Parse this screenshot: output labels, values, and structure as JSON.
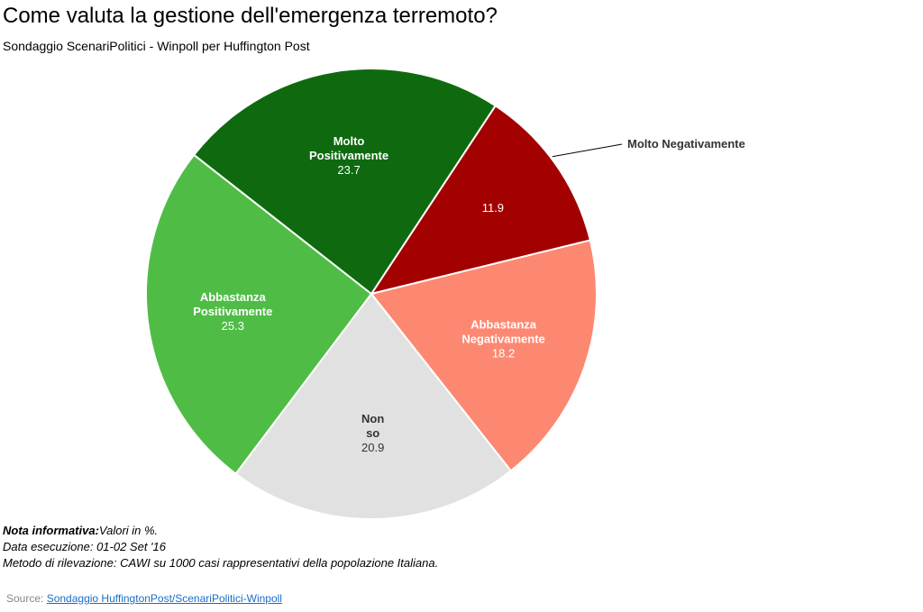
{
  "chart_data": {
    "type": "pie",
    "title": "Come valuta la gestione dell'emergenza terremoto?",
    "subtitle": "Sondaggio ScenariPolitici - Winpoll per Huffington Post",
    "slices": [
      {
        "label": "Molto Negativamente",
        "value": 11.9,
        "color": "#a30000",
        "label_color": "#ffffff",
        "outside": true
      },
      {
        "label": "Abbastanza Negativamente",
        "value": 18.2,
        "color": "#fd8872",
        "label_color": "#ffffff",
        "outside": false
      },
      {
        "label": "Non so",
        "value": 20.9,
        "color": "#e1e1e1",
        "label_color": "#333333",
        "outside": false
      },
      {
        "label": "Abbastanza Positivamente",
        "value": 25.3,
        "color": "#4fbd45",
        "label_color": "#ffffff",
        "outside": false
      },
      {
        "label": "Molto Positivamente",
        "value": 23.7,
        "color": "#0f6a0f",
        "label_color": "#ffffff",
        "outside": false
      }
    ]
  },
  "notes": {
    "nota_label": "Nota informativa:",
    "nota_text": "Valori in %.",
    "data_esecuzione": "Data esecuzione: 01-02 Set '16",
    "metodo": "Metodo di rilevazione: CAWI su 1000 casi rappresentativi della popolazione Italiana."
  },
  "source": {
    "prefix": "Source:",
    "link_text": "Sondaggio HuffingtonPost/ScenariPolitici-Winpoll"
  }
}
